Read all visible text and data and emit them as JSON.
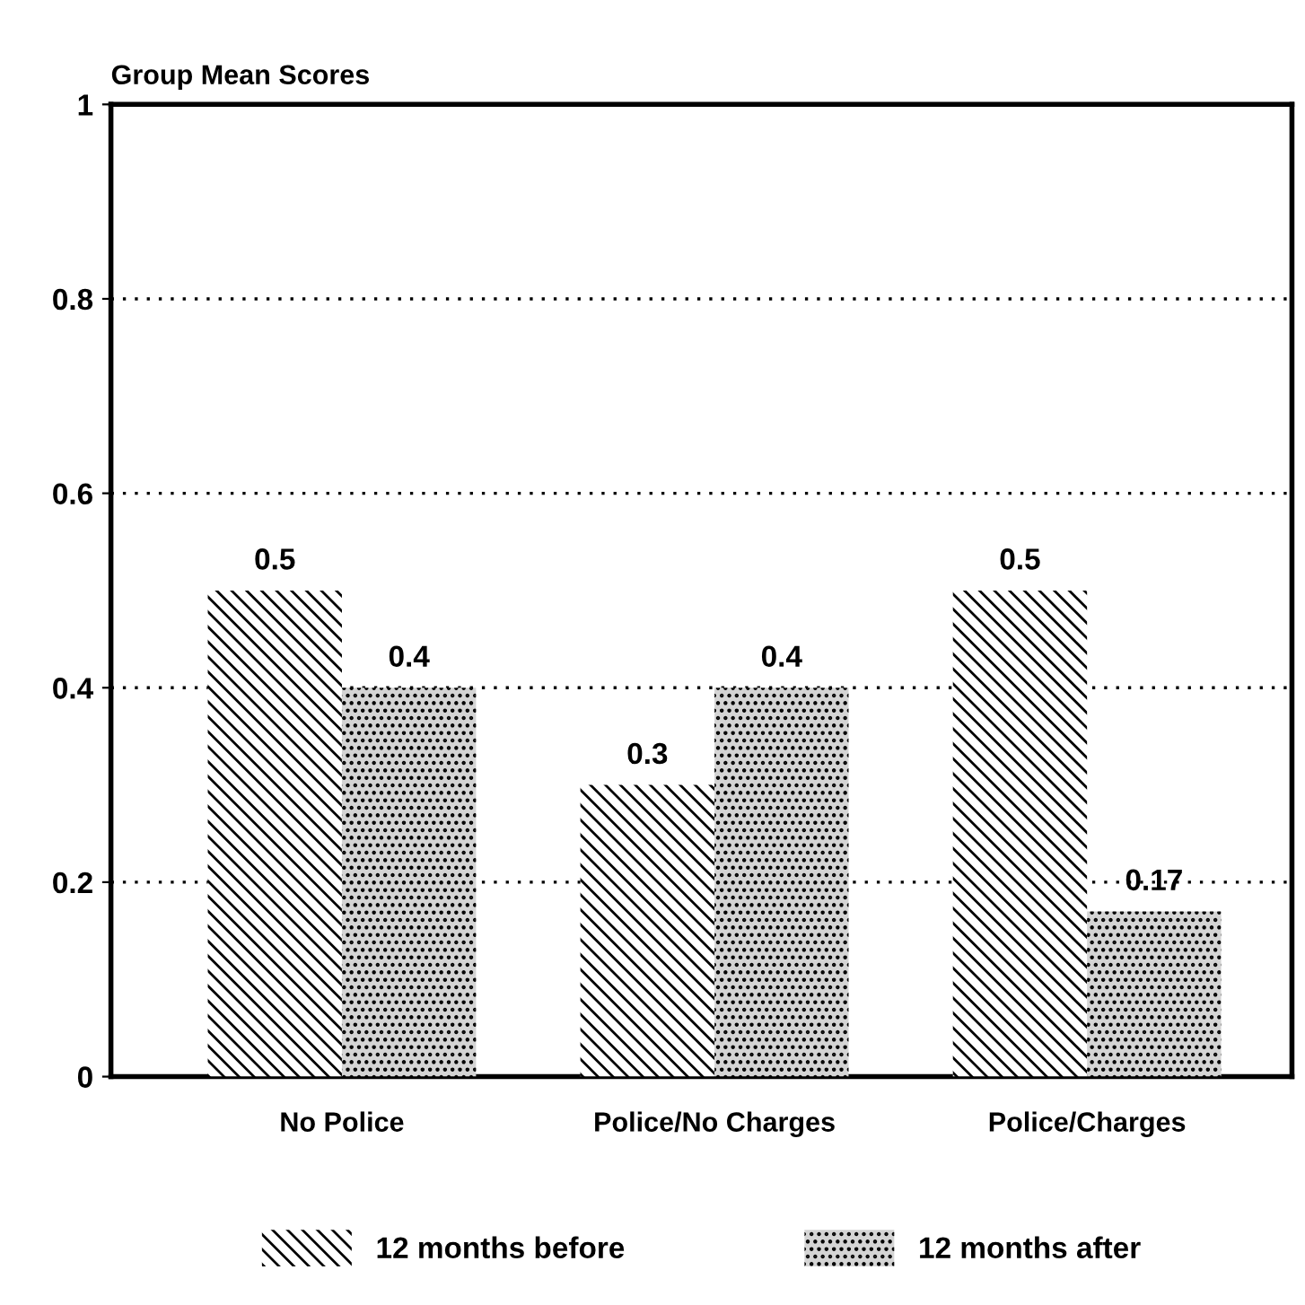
{
  "chart_data": {
    "type": "bar",
    "ylabel": "Group Mean Scores",
    "categories": [
      "No Police",
      "Police/No Charges",
      "Police/Charges"
    ],
    "series": [
      {
        "name": "12 months before",
        "color": "#ffffff",
        "values": [
          0.5,
          0.3,
          0.5
        ]
      },
      {
        "name": "12 months after",
        "color": "#d4d4d4",
        "values": [
          0.4,
          0.4,
          0.17
        ]
      }
    ],
    "ylim": [
      0,
      1
    ],
    "yticks": [
      0,
      0.2,
      0.4,
      0.6,
      0.8,
      1
    ],
    "grid": "y",
    "legend": "bottom",
    "data_labels": true
  }
}
